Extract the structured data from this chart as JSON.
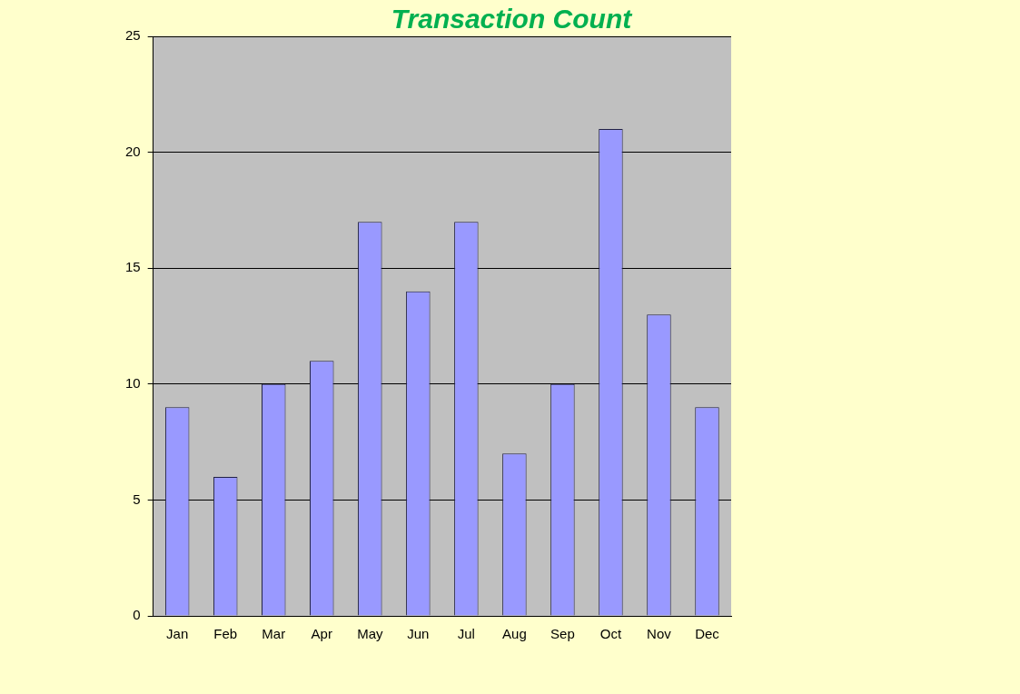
{
  "chart_data": {
    "type": "bar",
    "title": "Transaction Count",
    "categories": [
      "Jan",
      "Feb",
      "Mar",
      "Apr",
      "May",
      "Jun",
      "Jul",
      "Aug",
      "Sep",
      "Oct",
      "Nov",
      "Dec"
    ],
    "values": [
      9,
      6,
      10,
      11,
      17,
      14,
      17,
      7,
      10,
      21,
      13,
      9
    ],
    "color": "#9999ff",
    "ylim": [
      0,
      25
    ],
    "yticks": [
      0,
      5,
      10,
      15,
      20,
      25
    ],
    "grid": "y"
  }
}
